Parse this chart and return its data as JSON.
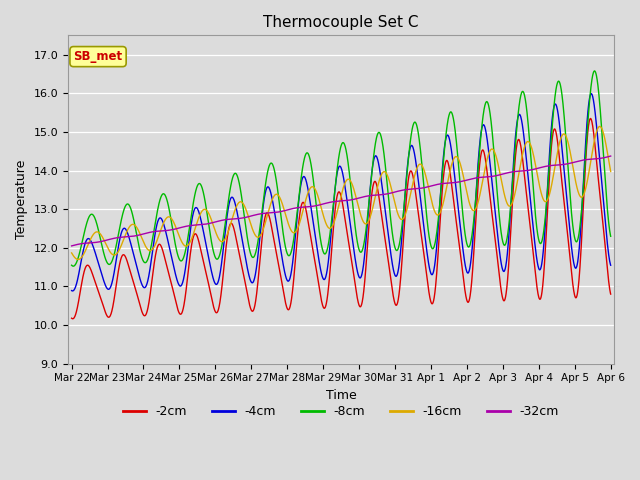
{
  "title": "Thermocouple Set C",
  "xlabel": "Time",
  "ylabel": "Temperature",
  "ylim": [
    9.0,
    17.5
  ],
  "annotation_text": "SB_met",
  "annotation_color": "#cc0000",
  "annotation_bg": "#ffff99",
  "annotation_border": "#999900",
  "bg_color": "#dcdcdc",
  "line_colors": {
    "-2cm": "#dd0000",
    "-4cm": "#0000dd",
    "-8cm": "#00bb00",
    "-16cm": "#ddaa00",
    "-32cm": "#aa00aa"
  },
  "x_tick_labels": [
    "Mar 22",
    "Mar 23",
    "Mar 24",
    "Mar 25",
    "Mar 26",
    "Mar 27",
    "Mar 28",
    "Mar 29",
    "Mar 30",
    "Mar 31",
    "Apr 1",
    "Apr 2",
    "Apr 3",
    "Apr 4",
    "Apr 5",
    "Apr 6"
  ],
  "yticks": [
    9.0,
    10.0,
    11.0,
    12.0,
    13.0,
    14.0,
    15.0,
    16.0,
    17.0
  ]
}
